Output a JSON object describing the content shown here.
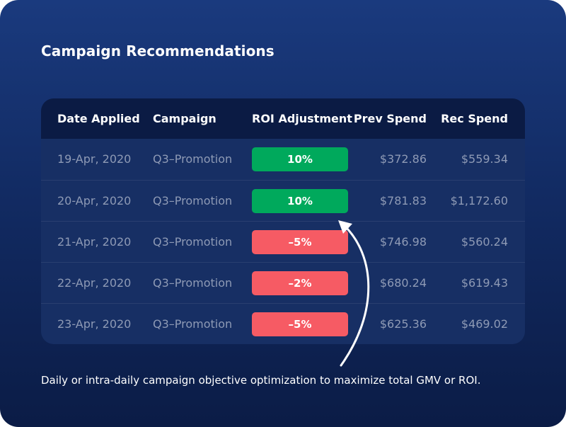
{
  "title": "Campaign Recommendations",
  "table": {
    "headers": {
      "date": "Date Applied",
      "campaign": "Campaign",
      "roi": "ROI Adjustment",
      "prev": "Prev Spend",
      "rec": "Rec Spend"
    },
    "rows": [
      {
        "date": "19-Apr, 2020",
        "campaign": "Q3–Promotion",
        "roi": "10%",
        "roi_color": "#00a95c",
        "prev": "$372.86",
        "rec": "$559.34"
      },
      {
        "date": "20-Apr, 2020",
        "campaign": "Q3–Promotion",
        "roi": "10%",
        "roi_color": "#00a95c",
        "prev": "$781.83",
        "rec": "$1,172.60"
      },
      {
        "date": "21-Apr, 2020",
        "campaign": "Q3–Promotion",
        "roi": "–5%",
        "roi_color": "#f65b64",
        "prev": "$746.98",
        "rec": "$560.24"
      },
      {
        "date": "22-Apr, 2020",
        "campaign": "Q3–Promotion",
        "roi": "–2%",
        "roi_color": "#f65b64",
        "prev": "$680.24",
        "rec": "$619.43"
      },
      {
        "date": "23-Apr, 2020",
        "campaign": "Q3–Promotion",
        "roi": "–5%",
        "roi_color": "#f65b64",
        "prev": "$625.36",
        "rec": "$469.02"
      }
    ]
  },
  "caption": "Daily or intra-daily campaign objective optimization to maximize total GMV or ROI.",
  "colors": {
    "background_top": "#1a3a7e",
    "background_bottom": "#0b1c46",
    "table_body": "#172f64",
    "table_header": "#0b1b44",
    "positive": "#00a95c",
    "negative": "#f65b64",
    "muted_text": "#8e9ab5"
  },
  "icons": {
    "annotation_arrow": "curved-arrow-up-icon"
  }
}
